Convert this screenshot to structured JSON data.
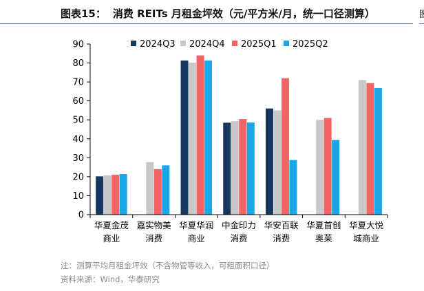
{
  "header": {
    "figure_label": "图表15：",
    "figure_title": "消费 REITs 月租金坪效（元/平方米/月，统一口径测算）",
    "right_glyph": "图"
  },
  "footer": {
    "note": "注：测算平均月租金坪效（不含物管等收入，可租面积口径）",
    "source": "资料来源：Wind，华泰研究"
  },
  "colors": {
    "axis": "#000000",
    "header_rule": "#4a6da0"
  },
  "chart_data": {
    "type": "bar",
    "title": "消费 REITs 月租金坪效（元/平方米/月，统一口径测算）",
    "xlabel": "",
    "ylabel": "",
    "ylim": [
      0,
      90
    ],
    "yticks": [
      0,
      10,
      20,
      30,
      40,
      50,
      60,
      70,
      80,
      90
    ],
    "grid": false,
    "legend_position": "top",
    "categories": [
      [
        "华夏金茂",
        "商业"
      ],
      [
        "嘉实物美",
        "消费"
      ],
      [
        "华夏华润",
        "商业"
      ],
      [
        "中金印力",
        "消费"
      ],
      [
        "华安百联",
        "消费"
      ],
      [
        "华夏首创",
        "奥莱"
      ],
      [
        "华夏大悦",
        "城商业"
      ]
    ],
    "series": [
      {
        "name": "2024Q3",
        "color": "#17375e",
        "values": [
          20.2,
          null,
          81.3,
          48.5,
          56.0,
          null,
          null
        ]
      },
      {
        "name": "2024Q4",
        "color": "#c8c8c8",
        "values": [
          20.7,
          27.7,
          80.2,
          49.3,
          55.0,
          50.0,
          71.0
        ]
      },
      {
        "name": "2025Q1",
        "color": "#f46464",
        "values": [
          21.0,
          24.0,
          84.0,
          50.4,
          72.0,
          51.0,
          69.4
        ]
      },
      {
        "name": "2025Q2",
        "color": "#1aa7e8",
        "values": [
          21.4,
          26.0,
          81.3,
          48.6,
          28.8,
          39.4,
          66.8
        ]
      }
    ]
  }
}
